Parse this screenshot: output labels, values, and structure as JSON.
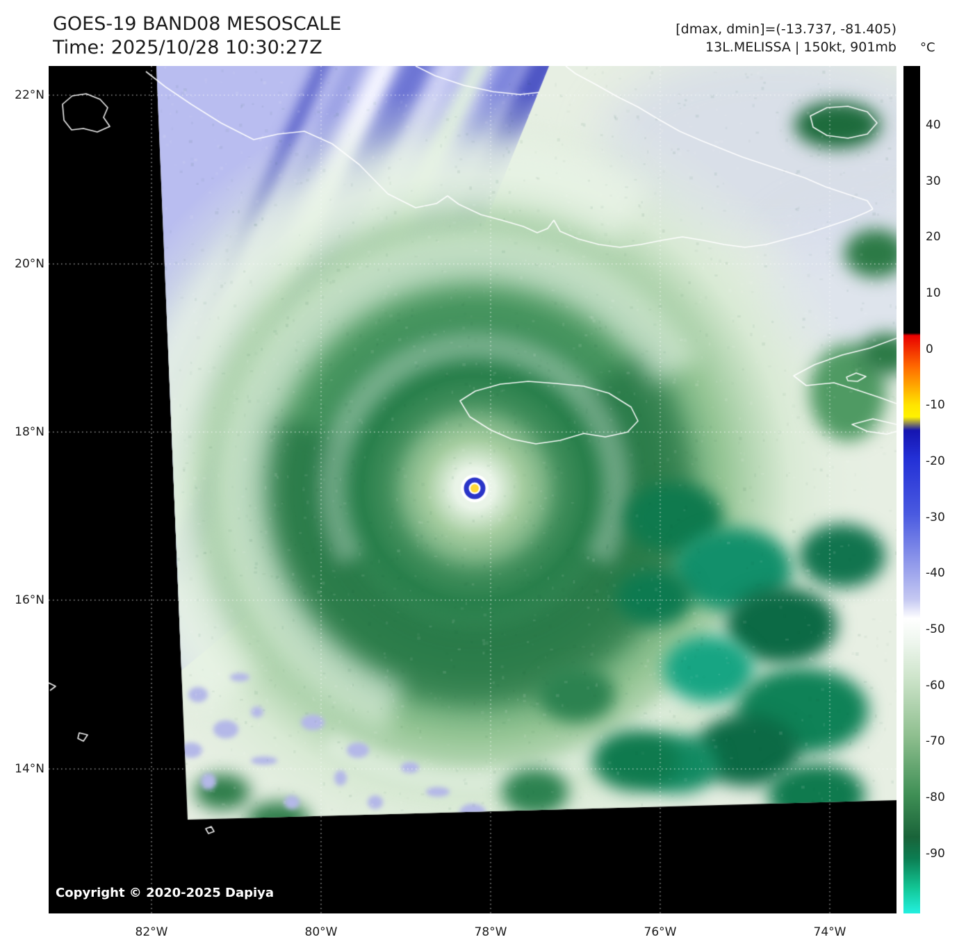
{
  "header": {
    "title": "GOES-19 BAND08 MESOSCALE",
    "time": "Time: 2025/10/28 10:30:27Z",
    "readout": "[dmax, dmin]=(-13.737, -81.405)",
    "storm": "13L.MELISSA | 150kt, 901mb"
  },
  "axes": {
    "lat": [
      "22°N",
      "20°N",
      "18°N",
      "16°N",
      "14°N"
    ],
    "lon": [
      "82°W",
      "80°W",
      "78°W",
      "76°W",
      "74°W"
    ]
  },
  "colorbar": {
    "unit": "°C",
    "ticks": [
      "40",
      "30",
      "20",
      "10",
      "0",
      "-10",
      "-20",
      "-30",
      "-40",
      "-50",
      "-60",
      "-70",
      "-80",
      "-90"
    ]
  },
  "map": {
    "copyright": "Copyright © 2020-2025 Dapiya"
  },
  "colors": {
    "background": "#000000",
    "deep_cloud_green": "#2c8250",
    "cold_top_teal": "#12c695",
    "warm_eye_yellow": "#ffd937",
    "eye_ring_blue": "#2a35c8",
    "coastline_white": "#ffffff"
  }
}
